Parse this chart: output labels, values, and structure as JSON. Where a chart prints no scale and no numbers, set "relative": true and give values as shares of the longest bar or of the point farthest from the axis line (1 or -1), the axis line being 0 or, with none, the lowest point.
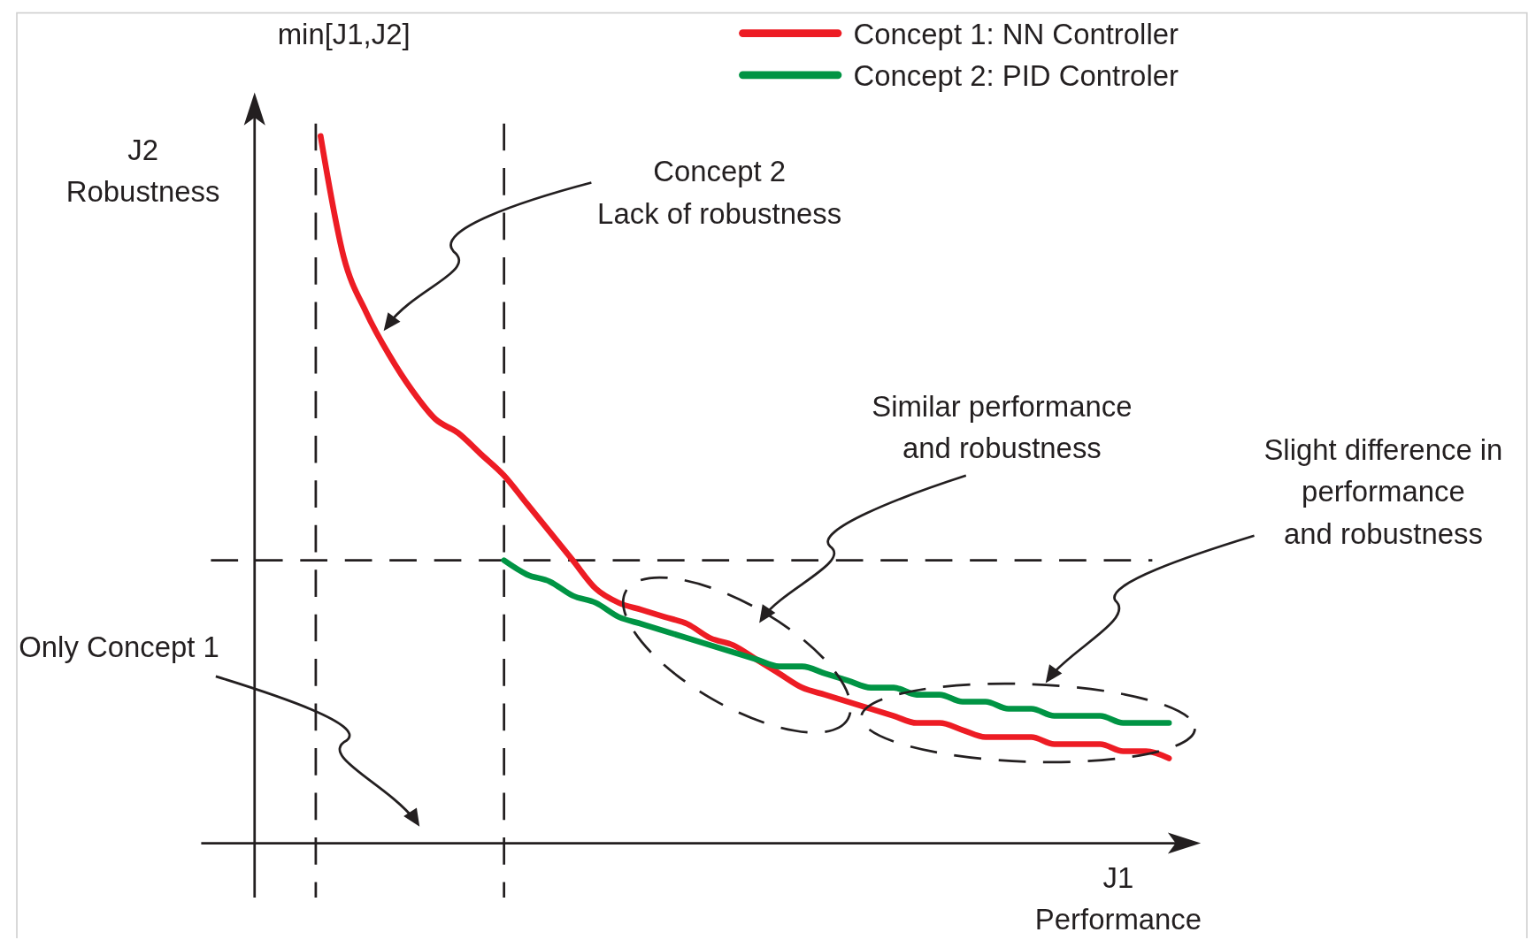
{
  "chart_data": {
    "type": "line",
    "relative": true,
    "xlabel": "J1\nPerformance",
    "ylabel": "J2\nRobustness",
    "legend": "top right",
    "categories": [
      null,
      null,
      null,
      null,
      null,
      null,
      null,
      null,
      null,
      null,
      null,
      null,
      null,
      null,
      null,
      null,
      null,
      null,
      null,
      null,
      null,
      null,
      null,
      null,
      null,
      null,
      null,
      null,
      null,
      null,
      null,
      null,
      null,
      null,
      null,
      null,
      null,
      null
    ],
    "series": [
      {
        "name": "Concept 1: NN Controller",
        "color": "#ed1c24",
        "values": [
          1.0,
          0.83,
          0.75,
          0.69,
          0.64,
          0.6,
          0.58,
          0.55,
          0.52,
          0.48,
          0.44,
          0.4,
          0.36,
          0.34,
          0.33,
          0.32,
          0.31,
          0.29,
          0.28,
          0.26,
          0.24,
          0.22,
          0.21,
          0.2,
          0.19,
          0.18,
          0.17,
          0.17,
          0.16,
          0.15,
          0.15,
          0.15,
          0.14,
          0.14,
          0.14,
          0.13,
          0.13,
          0.12
        ]
      },
      {
        "name": "Concept 2: PID Controler",
        "color": "#009444",
        "values": [
          null,
          null,
          null,
          null,
          null,
          null,
          null,
          null,
          0.4,
          0.38,
          0.37,
          0.35,
          0.34,
          0.32,
          0.31,
          0.3,
          0.29,
          0.28,
          0.27,
          0.26,
          0.25,
          0.25,
          0.24,
          0.23,
          0.22,
          0.22,
          0.21,
          0.21,
          0.2,
          0.2,
          0.19,
          0.19,
          0.18,
          0.18,
          0.18,
          0.17,
          0.17,
          0.17
        ]
      }
    ],
    "ref_lines": [
      {
        "axis": "y",
        "value": 0.4,
        "line_style": "dashed"
      }
    ],
    "annotations": [
      "Concept 2\nLack of robustness",
      "Similar performance\nand robustness",
      "Slight difference in\nperformance\nand robustness",
      "Only Concept 1",
      "min[J1,J2]"
    ]
  }
}
